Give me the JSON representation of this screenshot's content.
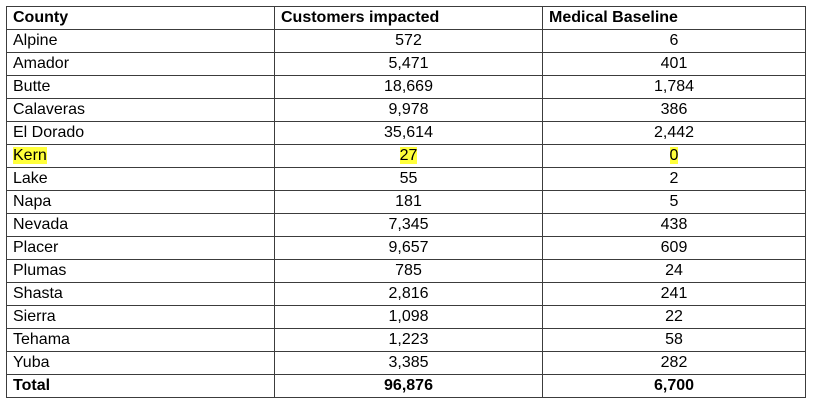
{
  "table": {
    "headers": {
      "county": "County",
      "customers": "Customers impacted",
      "medical": "Medical Baseline"
    },
    "rows": [
      {
        "county": "Alpine",
        "customers": "572",
        "medical": "6"
      },
      {
        "county": "Amador",
        "customers": "5,471",
        "medical": "401"
      },
      {
        "county": "Butte",
        "customers": "18,669",
        "medical": "1,784"
      },
      {
        "county": "Calaveras",
        "customers": "9,978",
        "medical": "386"
      },
      {
        "county": "El Dorado",
        "customers": "35,614",
        "medical": "2,442"
      },
      {
        "county": "Kern",
        "customers": "27",
        "medical": "0"
      },
      {
        "county": "Lake",
        "customers": "55",
        "medical": "2"
      },
      {
        "county": "Napa",
        "customers": "181",
        "medical": "5"
      },
      {
        "county": "Nevada",
        "customers": "7,345",
        "medical": "438"
      },
      {
        "county": "Placer",
        "customers": "9,657",
        "medical": "609"
      },
      {
        "county": "Plumas",
        "customers": "785",
        "medical": "24"
      },
      {
        "county": "Shasta",
        "customers": "2,816",
        "medical": "241"
      },
      {
        "county": "Sierra",
        "customers": "1,098",
        "medical": "22"
      },
      {
        "county": "Tehama",
        "customers": "1,223",
        "medical": "58"
      },
      {
        "county": "Yuba",
        "customers": "3,385",
        "medical": "282"
      }
    ],
    "total": {
      "county": "Total",
      "customers": "96,876",
      "medical": "6,700"
    },
    "highlight_color": "#ffff3a"
  }
}
